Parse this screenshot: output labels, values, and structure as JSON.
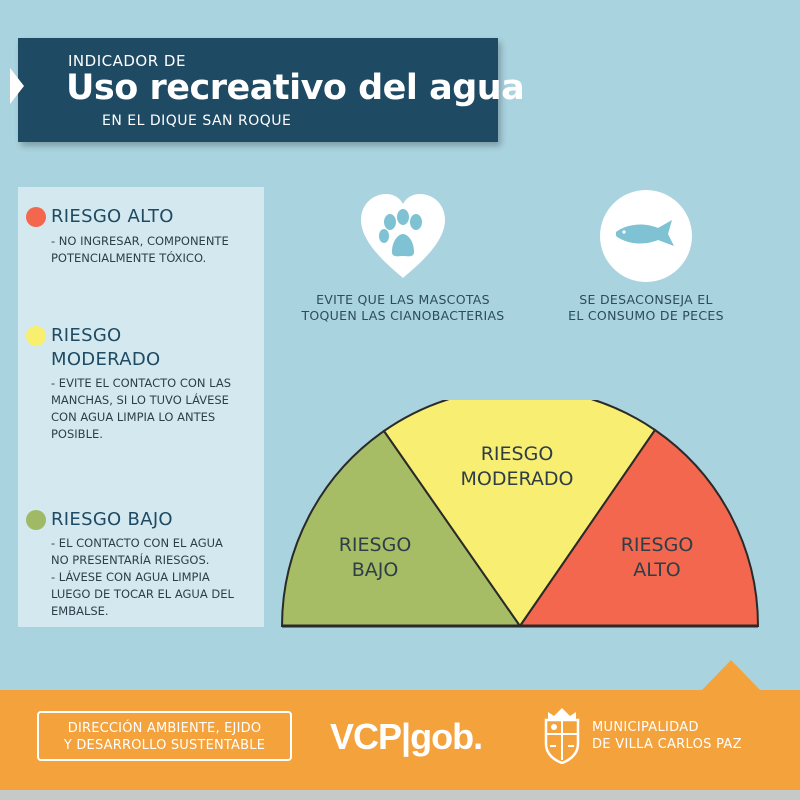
{
  "header": {
    "pre_title": "INDICADOR DE",
    "title": "Uso recreativo del agua",
    "subtitle": "EN EL DIQUE SAN ROQUE"
  },
  "legend": {
    "items": [
      {
        "color": "#f3674f",
        "title": "RIESGO ALTO",
        "description": "- NO INGRESAR, COMPONENTE\nPOTENCIALMENTE TÓXICO."
      },
      {
        "color": "#f9ef6e",
        "title": "RIESGO\nMODERADO",
        "description": "- EVITE EL CONTACTO CON LAS\nMANCHAS, SI LO TUVO LÁVESE\nCON AGUA LIMPIA LO ANTES\nPOSIBLE."
      },
      {
        "color": "#9fb964",
        "title": "RIESGO BAJO",
        "description": "- EL CONTACTO CON EL AGUA\n  NO PRESENTARÍA RIESGOS.\n- LÁVESE CON AGUA LIMPIA\nLUEGO DE TOCAR EL AGUA DEL\nEMBALSE."
      }
    ]
  },
  "advisories": [
    {
      "icon": "heart-paw-icon",
      "caption": "EVITE QUE LAS MASCOTAS\nTOQUEN LAS CIANOBACTERIAS"
    },
    {
      "icon": "fish-icon",
      "caption": "SE DESACONSEJA EL\nEL CONSUMO DE PECES"
    }
  ],
  "gauge": {
    "segments": [
      {
        "label_line1": "RIESGO",
        "label_line2": "BAJO",
        "color": "#a6bd66"
      },
      {
        "label_line1": "RIESGO",
        "label_line2": "MODERADO",
        "color": "#f8ee72"
      },
      {
        "label_line1": "RIESGO",
        "label_line2": "ALTO",
        "color": "#f3674f"
      }
    ]
  },
  "footer": {
    "department": "DIRECCIÓN AMBIENTE, EJIDO\nY DESARROLLO SUSTENTABLE",
    "logo_text": "VCP|gob.",
    "municipality": "MUNICIPALIDAD\nDE VILLA CARLOS PAZ"
  },
  "colors": {
    "background": "#a9d3df",
    "header": "#1f4a63",
    "footer": "#f4a23c"
  }
}
